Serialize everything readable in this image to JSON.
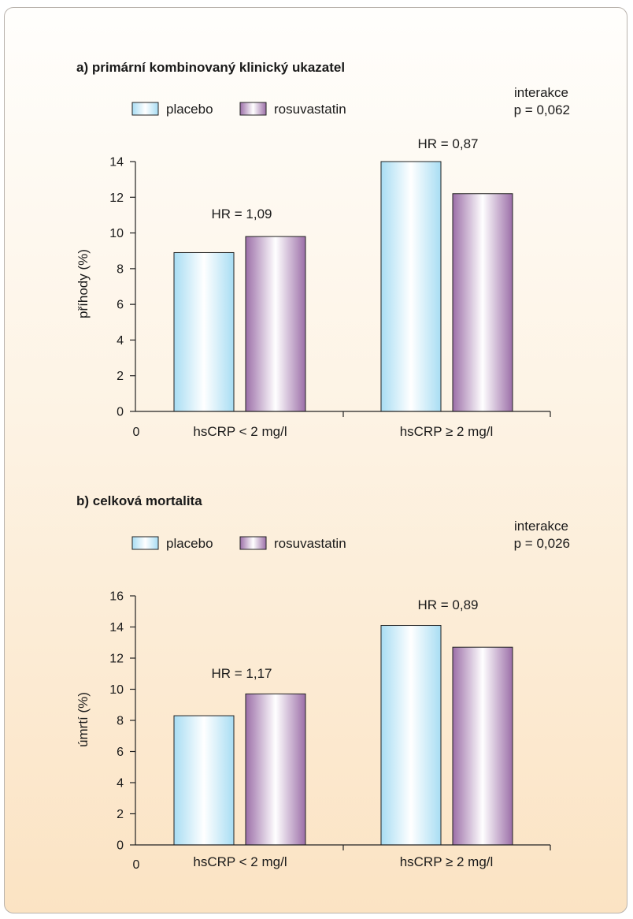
{
  "legend": {
    "placebo": "placebo",
    "rosuvastatin": "rosuvastatin"
  },
  "colors": {
    "placebo": {
      "edge": "#a8ddf3",
      "center": "#ffffff"
    },
    "rosuvastatin": {
      "edge": "#9c6fa8",
      "center": "#ffffff"
    }
  },
  "chart_data": [
    {
      "type": "bar",
      "title": "a) primární kombinovaný klinický ukazatel",
      "ylabel": "příhody (%)",
      "xlabel": "",
      "categories": [
        "hsCRP < 2 mg/l",
        "hsCRP ≥ 2 mg/l"
      ],
      "series": [
        {
          "name": "placebo",
          "values": [
            8.9,
            14.0
          ]
        },
        {
          "name": "rosuvastatin",
          "values": [
            9.8,
            12.2
          ]
        }
      ],
      "ylim": [
        0,
        14
      ],
      "yticks": [
        "0",
        "2",
        "4",
        "6",
        "8",
        "10",
        "12",
        "14"
      ],
      "origin_label": "0",
      "annotations": [
        "HR = 1,09",
        "HR = 0,87"
      ],
      "interaction": {
        "label": "interakce",
        "p": "p = 0,062"
      },
      "legend_position": "top-left",
      "grid": false
    },
    {
      "type": "bar",
      "title": "b) celková mortalita",
      "ylabel": "úmrtí (%)",
      "xlabel": "",
      "categories": [
        "hsCRP < 2 mg/l",
        "hsCRP ≥ 2 mg/l"
      ],
      "series": [
        {
          "name": "placebo",
          "values": [
            8.3,
            14.1
          ]
        },
        {
          "name": "rosuvastatin",
          "values": [
            9.7,
            12.7
          ]
        }
      ],
      "ylim": [
        0,
        16
      ],
      "yticks": [
        "0",
        "2",
        "4",
        "6",
        "8",
        "10",
        "12",
        "14",
        "16"
      ],
      "origin_label": "0",
      "annotations": [
        "HR = 1,17",
        "HR = 0,89"
      ],
      "interaction": {
        "label": "interakce",
        "p": "p = 0,026"
      },
      "legend_position": "top-left",
      "grid": false
    }
  ]
}
